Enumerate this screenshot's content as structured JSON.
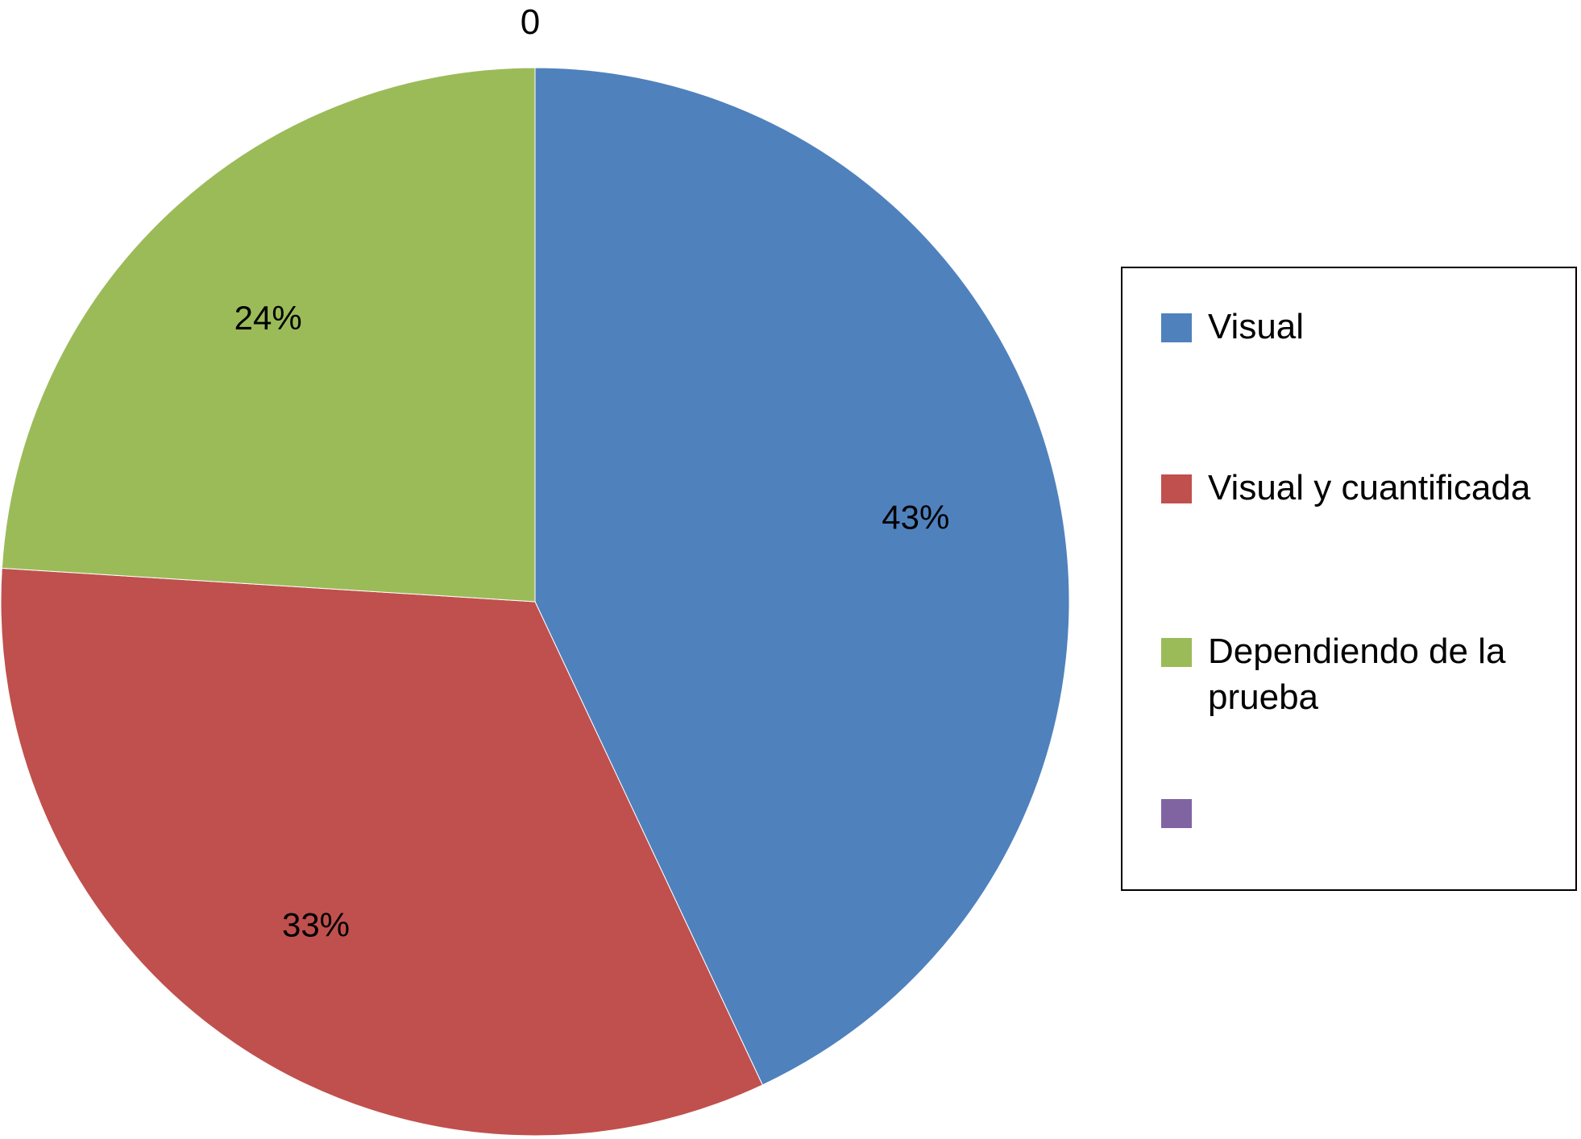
{
  "chart_data": {
    "type": "pie",
    "title": "0",
    "slices": [
      {
        "label": "Visual",
        "value": 43,
        "display": "43%",
        "color": "#4F81BD"
      },
      {
        "label": "Visual y cuantificada",
        "value": 33,
        "display": "33%",
        "color": "#C0504D"
      },
      {
        "label": "Dependiendo de la prueba",
        "value": 24,
        "display": "24%",
        "color": "#9BBB59"
      },
      {
        "label": "",
        "value": 0,
        "display": "",
        "color": "#8064A2"
      }
    ],
    "start_angle": "12 o'clock",
    "direction": "clockwise",
    "legend": {
      "position": "right",
      "border": true
    }
  }
}
